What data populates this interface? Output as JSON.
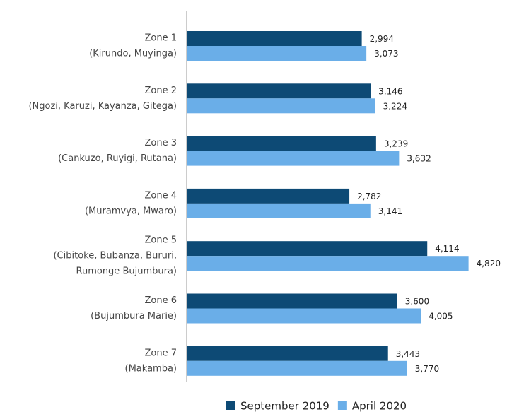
{
  "chart_data": {
    "type": "bar",
    "orientation": "horizontal",
    "categories": [
      [
        "Zone 1",
        "(Kirundo, Muyinga)"
      ],
      [
        "Zone 2",
        "(Ngozi, Karuzi, Kayanza, Gitega)"
      ],
      [
        "Zone 3",
        "(Cankuzo, Ruyigi, Rutana)"
      ],
      [
        "Zone 4",
        "(Muramvya, Mwaro)"
      ],
      [
        "Zone 5",
        "(Cibitoke, Bubanza, Bururi,",
        "Rumonge Bujumbura)"
      ],
      [
        "Zone 6",
        "(Bujumbura Marie)"
      ],
      [
        "Zone 7",
        "(Makamba)"
      ]
    ],
    "series": [
      {
        "name": "September 2019",
        "color": "#0d4a75",
        "values": [
          2994,
          3146,
          3239,
          2782,
          4114,
          3600,
          3443
        ],
        "value_labels": [
          "2,994",
          "3,146",
          "3,239",
          "2,782",
          "4,114",
          "3,600",
          "3,443"
        ]
      },
      {
        "name": "April 2020",
        "color": "#6aaee8",
        "values": [
          3073,
          3224,
          3632,
          3141,
          4820,
          4005,
          3770
        ],
        "value_labels": [
          "3,073",
          "3,224",
          "3,632",
          "3,141",
          "4,820",
          "4,005",
          "3,770"
        ]
      }
    ],
    "xlim": [
      0,
      5000
    ],
    "legend": "bottom"
  }
}
